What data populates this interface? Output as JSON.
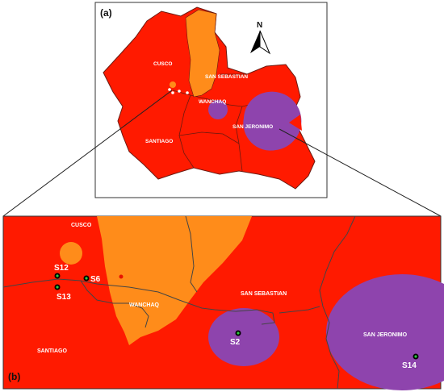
{
  "panels": {
    "a": {
      "label": "(a)"
    },
    "b": {
      "label": "(b)"
    }
  },
  "north_arrow": {
    "label": "N"
  },
  "colors": {
    "district_red": "#ff1a00",
    "district_darkred": "#e81400",
    "wanchaq_orange": "#ff8c1a",
    "zone_purple": "#8e44ad",
    "border": "#4a4a4a"
  },
  "overview_districts": [
    {
      "id": "cusco",
      "label": "CUSCO"
    },
    {
      "id": "san-sebastian",
      "label": "SAN SEBASTIAN"
    },
    {
      "id": "wanchaq",
      "label": "WANCHAQ"
    },
    {
      "id": "san-jeronimo",
      "label": "SAN JERONIMO"
    },
    {
      "id": "santiago",
      "label": "SANTIAGO"
    }
  ],
  "detail_districts": [
    {
      "id": "cusco",
      "label": "CUSCO"
    },
    {
      "id": "san-sebastian",
      "label": "SAN SEBASTIAN"
    },
    {
      "id": "wanchaq",
      "label": "WANCHAQ"
    },
    {
      "id": "san-jeronimo",
      "label": "SAN JERONIMO"
    },
    {
      "id": "santiago",
      "label": "SANTIAGO"
    }
  ],
  "stations": [
    {
      "id": "s12",
      "label": "S12"
    },
    {
      "id": "s13",
      "label": "S13"
    },
    {
      "id": "s6",
      "label": "S6"
    },
    {
      "id": "s2",
      "label": "S2"
    },
    {
      "id": "s14",
      "label": "S14"
    }
  ]
}
